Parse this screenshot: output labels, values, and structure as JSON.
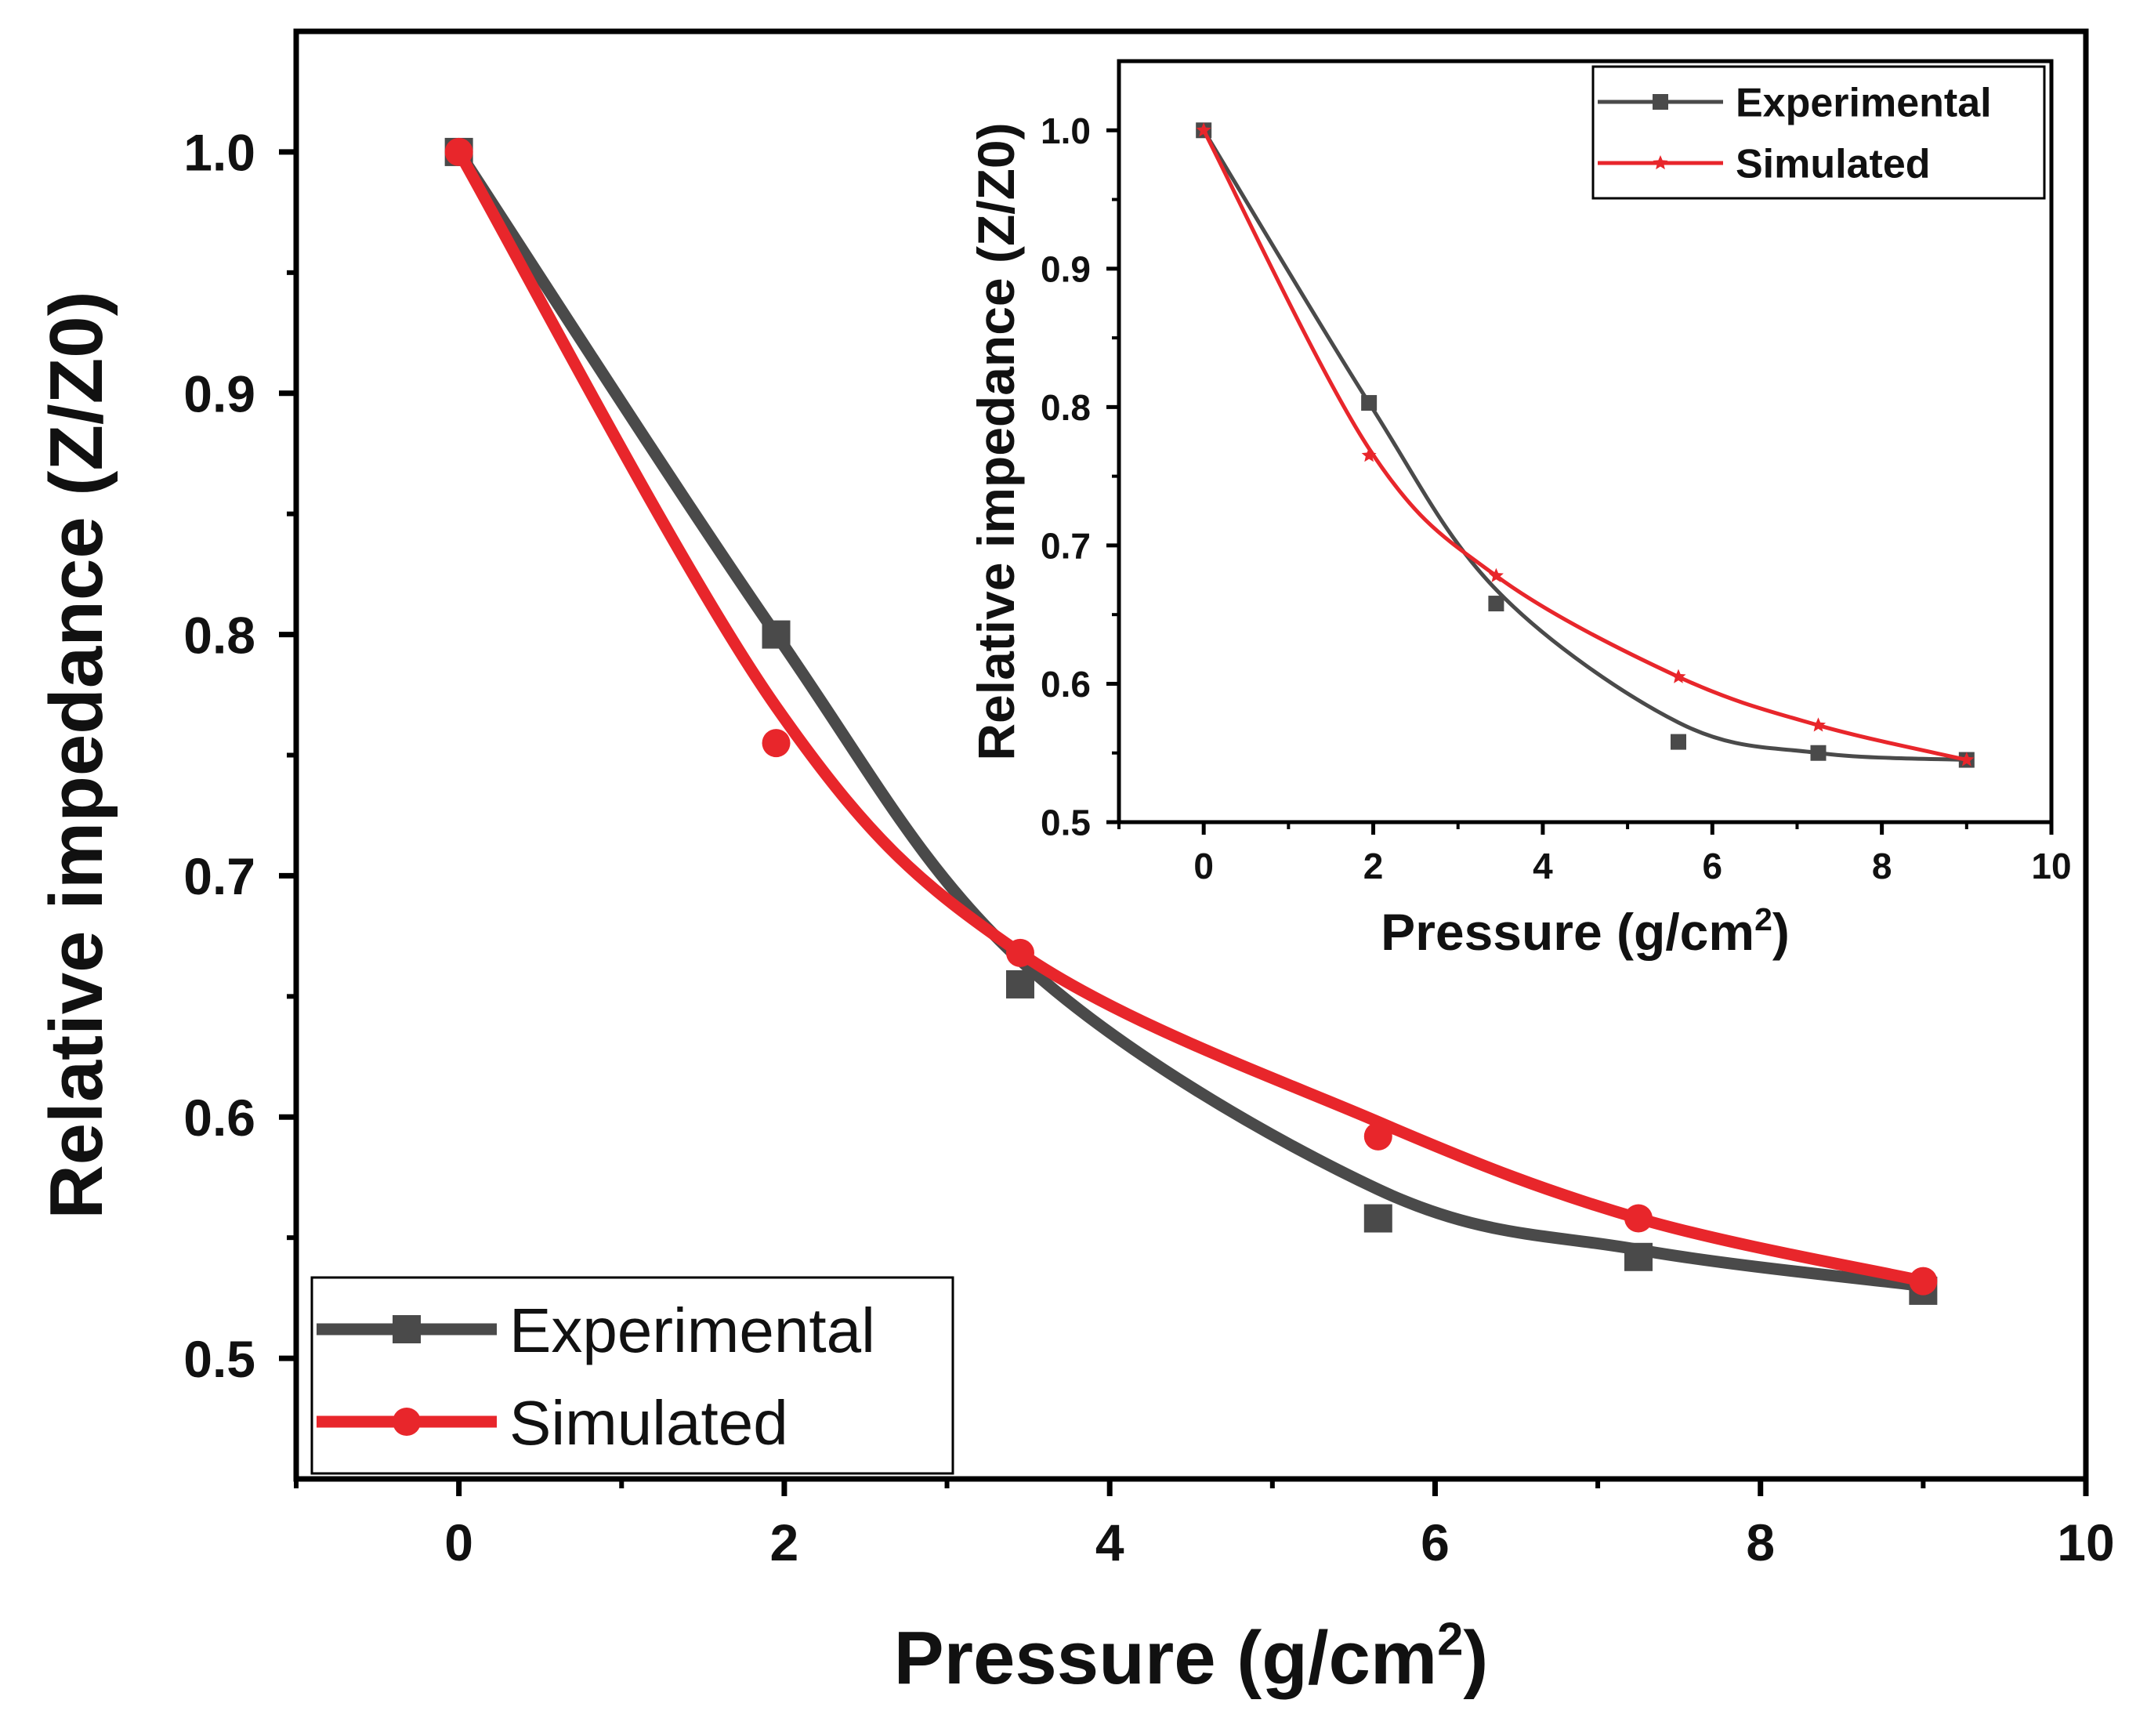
{
  "chart_data": [
    {
      "id": "main",
      "type": "line",
      "xlabel": "Pressure (g/cm",
      "xlabel_sup": "2",
      "xlabel_tail": ")",
      "ylabel": "Relative impedance (Z/Z0)",
      "xlim": [
        -1,
        10
      ],
      "ylim": [
        0.45,
        1.05
      ],
      "xticks": [
        0,
        2,
        4,
        6,
        8,
        10
      ],
      "xtick_labels": [
        "0",
        "2",
        "4",
        "6",
        "8",
        "10"
      ],
      "yticks": [
        0.5,
        0.6,
        0.7,
        0.8,
        0.9,
        1.0
      ],
      "ytick_labels": [
        "0.5",
        "0.6",
        "0.7",
        "0.8",
        "0.9",
        "1.0"
      ],
      "grid": false,
      "legend_position": "bottom-left",
      "series": [
        {
          "name": "Experimental",
          "color": "#4a4a4a",
          "marker": "square",
          "x": [
            0,
            1.95,
            3.45,
            5.65,
            7.25,
            9.0
          ],
          "y": [
            1.0,
            0.8,
            0.655,
            0.558,
            0.542,
            0.528
          ],
          "curve_y": [
            1.0,
            0.8,
            0.665,
            0.57,
            0.545,
            0.53
          ]
        },
        {
          "name": "Simulated",
          "color": "#e8262b",
          "marker": "circle",
          "x": [
            0,
            1.95,
            3.45,
            5.65,
            7.25,
            9.0
          ],
          "y": [
            1.0,
            0.755,
            0.668,
            0.592,
            0.558,
            0.532
          ],
          "curve_y": [
            1.0,
            0.77,
            0.668,
            0.598,
            0.558,
            0.532
          ]
        }
      ]
    },
    {
      "id": "inset",
      "type": "line",
      "xlabel": "Pressure (g/cm",
      "xlabel_sup": "2",
      "xlabel_tail": ")",
      "ylabel": "Relative impedance (Z/Z0)",
      "xlim": [
        -1,
        10
      ],
      "ylim": [
        0.5,
        1.05
      ],
      "xticks": [
        0,
        2,
        4,
        6,
        8,
        10
      ],
      "xtick_labels": [
        "0",
        "2",
        "4",
        "6",
        "8",
        "10"
      ],
      "yticks": [
        0.5,
        0.6,
        0.7,
        0.8,
        0.9,
        1.0
      ],
      "ytick_labels": [
        "0.5",
        "0.6",
        "0.7",
        "0.8",
        "0.9",
        "1.0"
      ],
      "grid": false,
      "legend_position": "top-right",
      "series": [
        {
          "name": "Experimental",
          "color": "#4a4a4a",
          "marker": "square",
          "x": [
            0,
            1.95,
            3.45,
            5.6,
            7.25,
            9.0
          ],
          "y": [
            1.0,
            0.803,
            0.658,
            0.558,
            0.55,
            0.545
          ],
          "curve_y": [
            1.0,
            0.803,
            0.668,
            0.572,
            0.55,
            0.545
          ]
        },
        {
          "name": "Simulated",
          "color": "#e8262b",
          "marker": "star",
          "x": [
            0,
            1.95,
            3.45,
            5.6,
            7.25,
            9.0
          ],
          "y": [
            1.0,
            0.765,
            0.678,
            0.605,
            0.57,
            0.545
          ],
          "curve_y": [
            1.0,
            0.77,
            0.678,
            0.605,
            0.57,
            0.545
          ]
        }
      ]
    }
  ]
}
